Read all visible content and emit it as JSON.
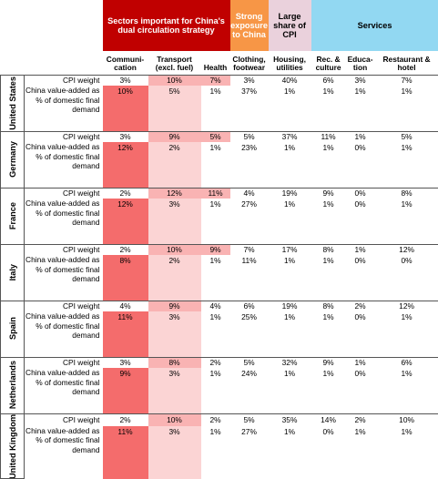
{
  "headers": {
    "sector_group": "Sectors important for China's dual circulation strategy",
    "china_group": "Strong exposure to China",
    "cpi_group": "Large share of CPI",
    "services_group": "Services"
  },
  "columns": [
    "Communi-cation",
    "Transport (excl. fuel)",
    "Health",
    "Clothing, footwear",
    "Housing, utilities",
    "Rec. & culture",
    "Educa-tion",
    "Restaurant & hotel"
  ],
  "row_labels": {
    "cpi": "CPI weight",
    "va": "China value-added as % of domestic final demand"
  },
  "colors": {
    "sector_header": "#c00000",
    "china_header": "#f79646",
    "cpi_header": "#ead1dc",
    "services_header": "#92d8f2",
    "heat_high": "#f46c6c",
    "heat_mid": "#f9b3b3",
    "heat_low": "#fbd4d4"
  },
  "countries": [
    {
      "name": "United States",
      "cpi": [
        "3%",
        "10%",
        "7%",
        "3%",
        "40%",
        "6%",
        "3%",
        "7%"
      ],
      "va": [
        "10%",
        "5%",
        "1%",
        "37%",
        "1%",
        "1%",
        "1%",
        "1%"
      ]
    },
    {
      "name": "Germany",
      "cpi": [
        "3%",
        "9%",
        "5%",
        "5%",
        "37%",
        "11%",
        "1%",
        "5%"
      ],
      "va": [
        "12%",
        "2%",
        "1%",
        "23%",
        "1%",
        "1%",
        "0%",
        "1%"
      ]
    },
    {
      "name": "France",
      "cpi": [
        "2%",
        "12%",
        "11%",
        "4%",
        "19%",
        "9%",
        "0%",
        "8%"
      ],
      "va": [
        "12%",
        "3%",
        "1%",
        "27%",
        "1%",
        "1%",
        "0%",
        "1%"
      ]
    },
    {
      "name": "Italy",
      "cpi": [
        "2%",
        "10%",
        "9%",
        "7%",
        "17%",
        "8%",
        "1%",
        "12%"
      ],
      "va": [
        "8%",
        "2%",
        "1%",
        "11%",
        "1%",
        "1%",
        "0%",
        "0%"
      ]
    },
    {
      "name": "Spain",
      "cpi": [
        "4%",
        "9%",
        "4%",
        "6%",
        "19%",
        "8%",
        "2%",
        "12%"
      ],
      "va": [
        "11%",
        "3%",
        "1%",
        "25%",
        "1%",
        "1%",
        "0%",
        "1%"
      ]
    },
    {
      "name": "Netherlands",
      "cpi": [
        "3%",
        "8%",
        "2%",
        "5%",
        "32%",
        "9%",
        "1%",
        "6%"
      ],
      "va": [
        "9%",
        "3%",
        "1%",
        "24%",
        "1%",
        "1%",
        "0%",
        "1%"
      ]
    },
    {
      "name": "United Kingdom",
      "cpi": [
        "2%",
        "10%",
        "2%",
        "5%",
        "35%",
        "14%",
        "2%",
        "10%"
      ],
      "va": [
        "11%",
        "3%",
        "1%",
        "27%",
        "1%",
        "0%",
        "1%",
        "1%"
      ]
    }
  ],
  "heat": {
    "cpi": [
      [
        "",
        "mid",
        "mid",
        "",
        "",
        "",
        "",
        ""
      ],
      [
        "",
        "mid",
        "mid",
        "",
        "",
        "",
        "",
        ""
      ],
      [
        "",
        "mid",
        "mid",
        "",
        "",
        "",
        "",
        ""
      ],
      [
        "",
        "mid",
        "mid",
        "",
        "",
        "",
        "",
        ""
      ],
      [
        "",
        "mid",
        "",
        "",
        "",
        "",
        "",
        ""
      ],
      [
        "",
        "mid",
        "",
        "",
        "",
        "",
        "",
        ""
      ],
      [
        "",
        "mid",
        "",
        "",
        "",
        "",
        "",
        ""
      ]
    ],
    "va": [
      [
        "high",
        "low",
        "",
        "",
        "",
        "",
        "",
        ""
      ],
      [
        "high",
        "low",
        "",
        "",
        "",
        "",
        "",
        ""
      ],
      [
        "high",
        "low",
        "",
        "",
        "",
        "",
        "",
        ""
      ],
      [
        "high",
        "low",
        "",
        "",
        "",
        "",
        "",
        ""
      ],
      [
        "high",
        "low",
        "",
        "",
        "",
        "",
        "",
        ""
      ],
      [
        "high",
        "low",
        "",
        "",
        "",
        "",
        "",
        ""
      ],
      [
        "high",
        "low",
        "",
        "",
        "",
        "",
        "",
        ""
      ]
    ]
  }
}
